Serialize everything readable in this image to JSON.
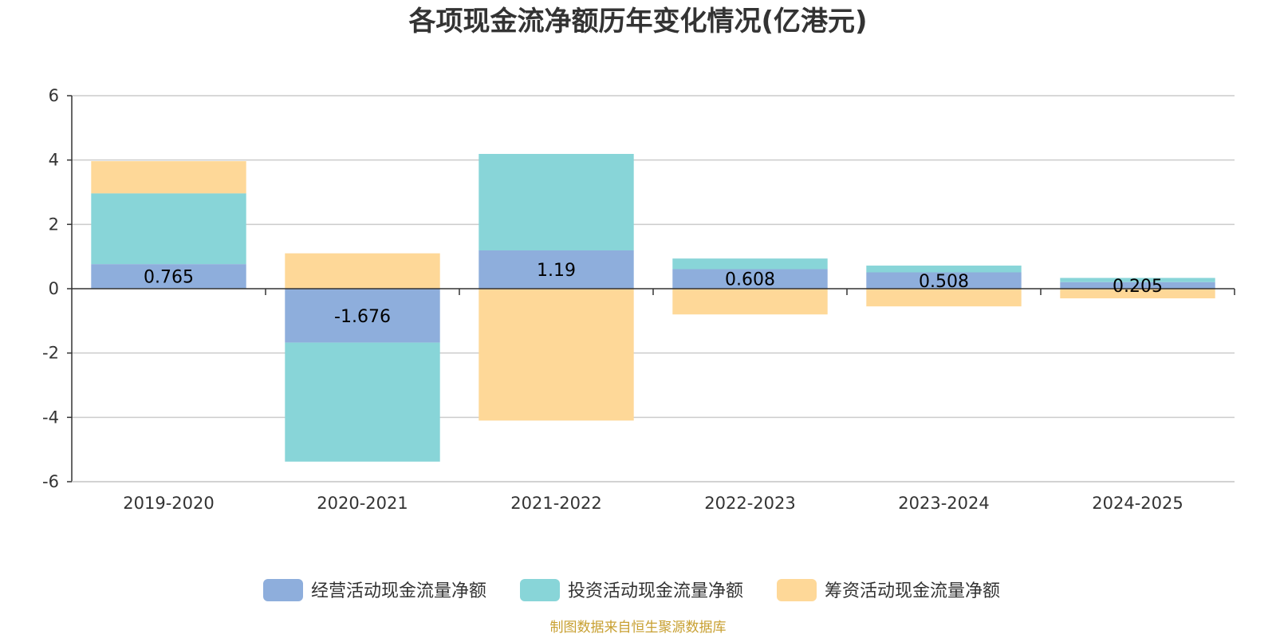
{
  "chart_data": {
    "type": "bar",
    "stacked": true,
    "title": "各项现金流净额历年变化情况(亿港元)",
    "xlabel": "",
    "ylabel": "",
    "categories": [
      "2019-2020",
      "2020-2021",
      "2021-2022",
      "2022-2023",
      "2023-2024",
      "2024-2025"
    ],
    "ylim": [
      -6,
      6
    ],
    "yticks": [
      -6,
      -4,
      -2,
      0,
      2,
      4,
      6
    ],
    "ytick_labels": [
      "-6",
      "-4",
      "-2",
      "0",
      "2",
      "4",
      "6"
    ],
    "grid": true,
    "legend_position": "bottom",
    "series": [
      {
        "name": "经营活动现金流量净额",
        "color": "#8eaedc",
        "values": [
          0.765,
          -1.676,
          1.19,
          0.608,
          0.508,
          0.205
        ],
        "labels": [
          "0.765",
          "-1.676",
          "1.19",
          "0.608",
          "0.508",
          "0.205"
        ]
      },
      {
        "name": "投资活动现金流量净额",
        "color": "#88d5d8",
        "values": [
          2.2,
          -3.7,
          3.0,
          0.33,
          0.21,
          0.13
        ]
      },
      {
        "name": "筹资活动现金流量净额",
        "color": "#fed898",
        "values": [
          1.0,
          1.1,
          -4.1,
          -0.8,
          -0.55,
          -0.3
        ]
      }
    ]
  },
  "source_note": "制图数据来自恒生聚源数据库"
}
